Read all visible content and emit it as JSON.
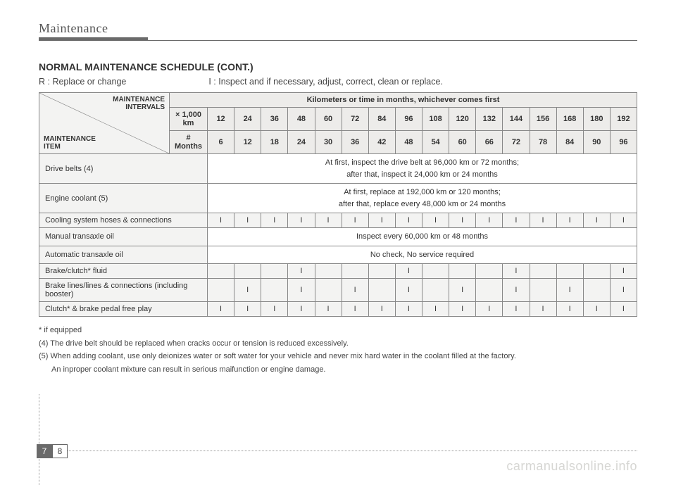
{
  "header": {
    "title": "Maintenance"
  },
  "section": {
    "title": "NORMAL MAINTENANCE SCHEDULE (CONT.)",
    "legend_r": "R : Replace or change",
    "legend_i": "I : Inspect and if necessary, adjust, correct, clean or replace."
  },
  "table": {
    "diag_top": "MAINTENANCE\nINTERVALS",
    "diag_bot": "MAINTENANCE\nITEM",
    "group_header": "Kilometers or time in months, whichever comes first",
    "km_label": "× 1,000 km",
    "km_vals": [
      "12",
      "24",
      "36",
      "48",
      "60",
      "72",
      "84",
      "96",
      "108",
      "120",
      "132",
      "144",
      "156",
      "168",
      "180",
      "192"
    ],
    "mo_label": "# Months",
    "mo_vals": [
      "6",
      "12",
      "18",
      "24",
      "30",
      "36",
      "42",
      "48",
      "54",
      "60",
      "66",
      "72",
      "78",
      "84",
      "90",
      "96"
    ],
    "rows": [
      {
        "label": "Drive belts (4)",
        "type": "note",
        "note": "At first, inspect the drive belt at 96,000 km or 72 months;\nafter that, inspect it 24,000 km or 24 months"
      },
      {
        "label": "Engine coolant (5)",
        "type": "note",
        "note": "At first, replace at 192,000 km or 120 months;\nafter that, replace every 48,000 km or 24 months"
      },
      {
        "label": "Cooling system hoses & connections",
        "type": "cells",
        "cells": [
          "I",
          "I",
          "I",
          "I",
          "I",
          "I",
          "I",
          "I",
          "I",
          "I",
          "I",
          "I",
          "I",
          "I",
          "I",
          "I"
        ]
      },
      {
        "label": "Manual transaxle oil",
        "type": "note",
        "note": "Inspect every 60,000 km or 48 months"
      },
      {
        "label": "Automatic transaxle oil",
        "type": "note",
        "note": "No check, No service required"
      },
      {
        "label": "Brake/clutch* fluid",
        "type": "cells",
        "cells": [
          "",
          "",
          "",
          "I",
          "",
          "",
          "",
          "I",
          "",
          "",
          "",
          "I",
          "",
          "",
          "",
          "I"
        ]
      },
      {
        "label": "Brake lines/lines & connections (including booster)",
        "type": "cells",
        "cells": [
          "",
          "I",
          "",
          "I",
          "",
          "I",
          "",
          "I",
          "",
          "I",
          "",
          "I",
          "",
          "I",
          "",
          "I"
        ]
      },
      {
        "label": "Clutch* & brake pedal free play",
        "type": "cells",
        "cells": [
          "I",
          "I",
          "I",
          "I",
          "I",
          "I",
          "I",
          "I",
          "I",
          "I",
          "I",
          "I",
          "I",
          "I",
          "I",
          "I"
        ]
      }
    ]
  },
  "footnotes": {
    "f1": "* if equipped",
    "f2": "(4) The drive belt should be replaced when cracks occur or tension is reduced excessively.",
    "f3": "(5) When adding coolant, use only deionizes water or soft water for your vehicle and never mix hard water in the coolant filled at the factory.",
    "f3b": "An inproper coolant mixture can result in serious maifunction or engine damage."
  },
  "page_nums": {
    "chapter": "7",
    "page": "8"
  },
  "watermark": "carmanualsonline.info",
  "colors": {
    "rule": "#6a6a6a",
    "cell_bg": "#f3f3f2",
    "hdr_bg": "#edecea",
    "border": "#888888"
  }
}
